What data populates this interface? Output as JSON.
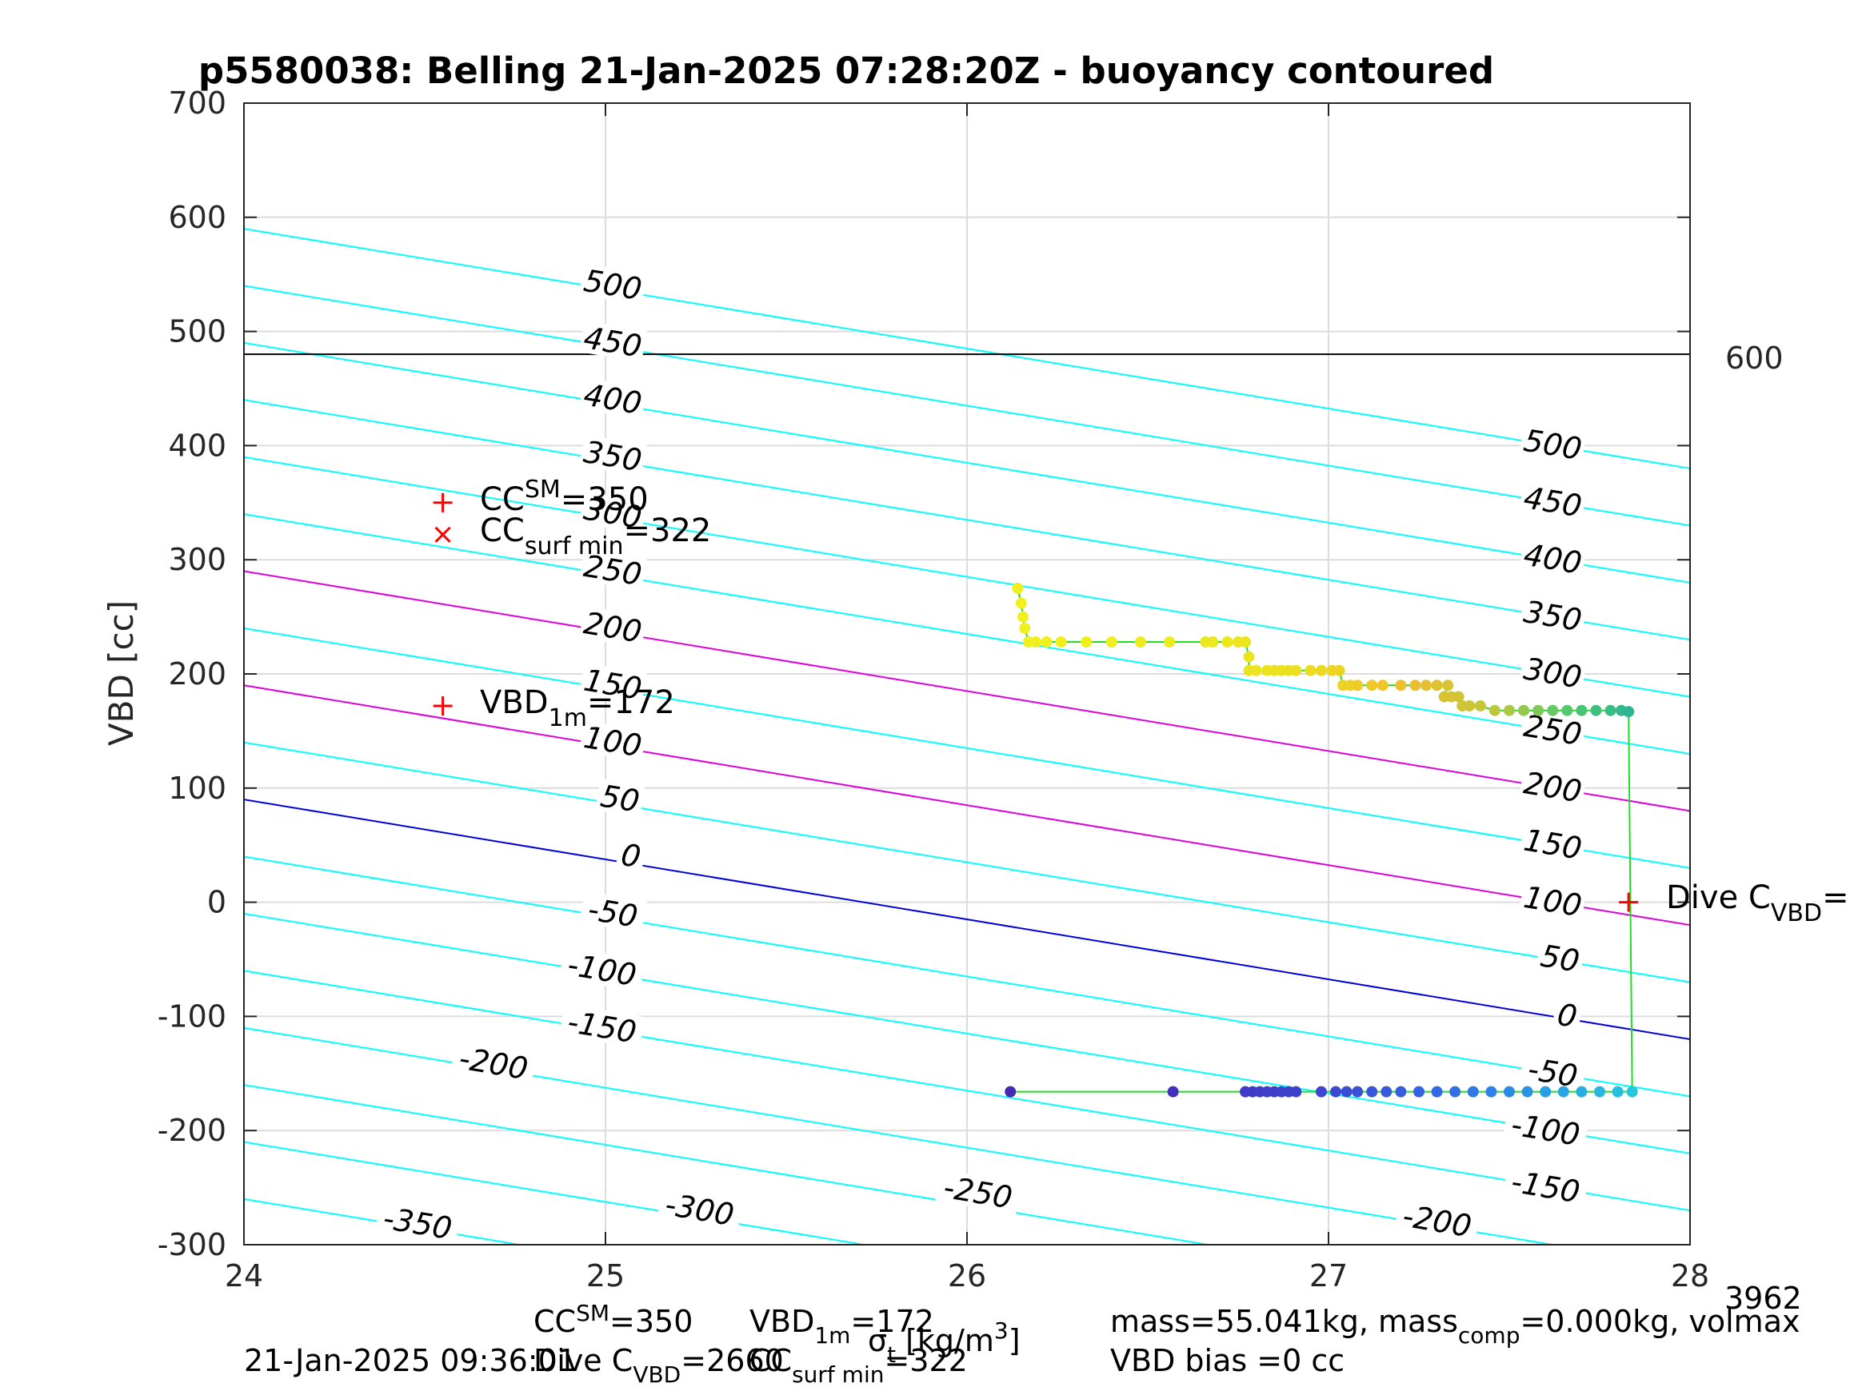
{
  "chart_data": {
    "type": "scatter",
    "title": "p5580038: Belling 21-Jan-2025 07:28:20Z - buoyancy contoured",
    "xlabel": "",
    "ylabel": "VBD [cc]",
    "xlim": [
      24,
      28
    ],
    "ylim": [
      -300,
      700
    ],
    "x_ticks": [
      24,
      25,
      26,
      27,
      28
    ],
    "y_ticks": [
      -300,
      -200,
      -100,
      0,
      100,
      200,
      300,
      400,
      500,
      600,
      700
    ],
    "x_tick_labels": [
      "24",
      "25",
      "26",
      "27",
      "28"
    ],
    "y_tick_labels": [
      "-300",
      "-200",
      "-100",
      "0",
      "100",
      "200",
      "300",
      "400",
      "500",
      "600",
      "700"
    ],
    "grid": true,
    "contours": {
      "slope_cc_per_unit": -52.5,
      "base_at_x24_for_level_0": 90,
      "levels": [
        -350,
        -300,
        -250,
        -200,
        -150,
        -100,
        -50,
        0,
        50,
        100,
        150,
        200,
        250,
        300,
        350,
        400,
        450,
        500
      ],
      "highlight": [
        {
          "level": 0,
          "color": "#0000dd"
        },
        {
          "level": 100,
          "color": "#dd00dd"
        },
        {
          "level": 200,
          "color": "#dd00dd"
        }
      ],
      "color": "#00ffff",
      "labels_left": [
        {
          "text": "500",
          "x": 25.02,
          "y": 540
        },
        {
          "text": "450",
          "x": 25.02,
          "y": 490
        },
        {
          "text": "400",
          "x": 25.02,
          "y": 440
        },
        {
          "text": "350",
          "x": 25.02,
          "y": 390
        },
        {
          "text": "300",
          "x": 25.02,
          "y": 340
        },
        {
          "text": "250",
          "x": 25.02,
          "y": 290
        },
        {
          "text": "200",
          "x": 25.02,
          "y": 240
        },
        {
          "text": "150",
          "x": 25.02,
          "y": 190
        },
        {
          "text": "100",
          "x": 25.02,
          "y": 140
        },
        {
          "text": "50",
          "x": 25.04,
          "y": 90
        },
        {
          "text": "0",
          "x": 25.07,
          "y": 40
        },
        {
          "text": "-50",
          "x": 25.02,
          "y": -10
        },
        {
          "text": "-100",
          "x": 24.99,
          "y": -60
        },
        {
          "text": "-150",
          "x": 24.99,
          "y": -110
        },
        {
          "text": "-200",
          "x": 24.69,
          "y": -142
        },
        {
          "text": "-250",
          "x": 26.03,
          "y": -255
        },
        {
          "text": "-300",
          "x": 25.26,
          "y": -270
        },
        {
          "text": "-350",
          "x": 24.48,
          "y": -282
        }
      ],
      "labels_right": [
        {
          "text": "500",
          "x": 27.62,
          "y": 400
        },
        {
          "text": "450",
          "x": 27.62,
          "y": 350
        },
        {
          "text": "400",
          "x": 27.62,
          "y": 300
        },
        {
          "text": "350",
          "x": 27.62,
          "y": 250
        },
        {
          "text": "300",
          "x": 27.62,
          "y": 200
        },
        {
          "text": "250",
          "x": 27.62,
          "y": 150
        },
        {
          "text": "200",
          "x": 27.62,
          "y": 100
        },
        {
          "text": "150",
          "x": 27.62,
          "y": 50
        },
        {
          "text": "100",
          "x": 27.62,
          "y": 0
        },
        {
          "text": "50",
          "x": 27.64,
          "y": -50
        },
        {
          "text": "0",
          "x": 27.66,
          "y": -100
        },
        {
          "text": "-50",
          "x": 27.62,
          "y": -150
        },
        {
          "text": "-100",
          "x": 27.6,
          "y": -200
        },
        {
          "text": "-150",
          "x": 27.6,
          "y": -250
        },
        {
          "text": "-200",
          "x": 27.3,
          "y": -280
        }
      ]
    },
    "reference_line": {
      "y": 480,
      "color": "#000000",
      "label": "600"
    },
    "series": [
      {
        "name": "",
        "color_scale": "yellow-to-orange-to-green",
        "points": [
          [
            26.14,
            275
          ],
          [
            26.15,
            262
          ],
          [
            26.155,
            250
          ],
          [
            26.16,
            240
          ],
          [
            26.17,
            228
          ],
          [
            26.19,
            228
          ],
          [
            26.22,
            228
          ],
          [
            26.26,
            228
          ],
          [
            26.33,
            228
          ],
          [
            26.4,
            228
          ],
          [
            26.48,
            228
          ],
          [
            26.56,
            228
          ],
          [
            26.66,
            228
          ],
          [
            26.68,
            228
          ],
          [
            26.72,
            228
          ],
          [
            26.75,
            228
          ],
          [
            26.77,
            228
          ],
          [
            26.78,
            215
          ],
          [
            26.78,
            203
          ],
          [
            26.8,
            203
          ],
          [
            26.83,
            203
          ],
          [
            26.85,
            203
          ],
          [
            26.87,
            203
          ],
          [
            26.89,
            203
          ],
          [
            26.91,
            203
          ],
          [
            26.95,
            203
          ],
          [
            26.98,
            203
          ],
          [
            27.01,
            203
          ],
          [
            27.03,
            203
          ],
          [
            27.04,
            190
          ],
          [
            27.06,
            190
          ],
          [
            27.08,
            190
          ],
          [
            27.12,
            190
          ],
          [
            27.15,
            190
          ],
          [
            27.2,
            190
          ],
          [
            27.24,
            190
          ],
          [
            27.27,
            190
          ],
          [
            27.3,
            190
          ],
          [
            27.33,
            190
          ],
          [
            27.32,
            180
          ],
          [
            27.34,
            180
          ],
          [
            27.36,
            180
          ],
          [
            27.37,
            172
          ],
          [
            27.39,
            172
          ],
          [
            27.42,
            172
          ],
          [
            27.46,
            168
          ],
          [
            27.5,
            168
          ],
          [
            27.54,
            168
          ],
          [
            27.58,
            168
          ],
          [
            27.62,
            168
          ],
          [
            27.66,
            168
          ],
          [
            27.7,
            168
          ],
          [
            27.74,
            168
          ],
          [
            27.78,
            168
          ],
          [
            27.81,
            168
          ],
          [
            27.83,
            167
          ]
        ]
      },
      {
        "name": "",
        "color_scale": "indigo-to-blue-to-cyan",
        "points": [
          [
            26.12,
            -166
          ],
          [
            26.57,
            -166
          ],
          [
            26.77,
            -166
          ],
          [
            26.79,
            -166
          ],
          [
            26.81,
            -166
          ],
          [
            26.83,
            -166
          ],
          [
            26.85,
            -166
          ],
          [
            26.87,
            -166
          ],
          [
            26.89,
            -166
          ],
          [
            26.91,
            -166
          ],
          [
            26.98,
            -166
          ],
          [
            27.02,
            -166
          ],
          [
            27.05,
            -166
          ],
          [
            27.08,
            -166
          ],
          [
            27.12,
            -166
          ],
          [
            27.16,
            -166
          ],
          [
            27.2,
            -166
          ],
          [
            27.25,
            -166
          ],
          [
            27.3,
            -166
          ],
          [
            27.35,
            -166
          ],
          [
            27.4,
            -166
          ],
          [
            27.45,
            -166
          ],
          [
            27.5,
            -166
          ],
          [
            27.55,
            -166
          ],
          [
            27.6,
            -166
          ],
          [
            27.65,
            -166
          ],
          [
            27.7,
            -166
          ],
          [
            27.75,
            -166
          ],
          [
            27.8,
            -166
          ],
          [
            27.84,
            -166
          ]
        ]
      }
    ],
    "path_line": {
      "color": "#22dd22",
      "points": [
        [
          26.12,
          -166
        ],
        [
          27.84,
          -166
        ],
        [
          27.84,
          -166
        ],
        [
          27.83,
          167
        ],
        [
          27.83,
          167
        ]
      ]
    },
    "markers": [
      {
        "shape": "plus",
        "x": 24.55,
        "y": 350,
        "color": "#ff0000"
      },
      {
        "shape": "x",
        "x": 24.55,
        "y": 322,
        "color": "#ff0000"
      },
      {
        "shape": "plus",
        "x": 24.55,
        "y": 172,
        "color": "#ff0000"
      },
      {
        "shape": "plus",
        "x": 27.83,
        "y": 0,
        "color": "#ff0000"
      }
    ],
    "annotations": {
      "cc_sm": {
        "main": "CC",
        "sub": "SM",
        "rest": "=350"
      },
      "cc_surf": {
        "main": "CC",
        "sub": "surf min",
        "rest": "=322"
      },
      "vbd_1m": {
        "main": "VBD",
        "sub": "1m",
        "rest": "=172"
      },
      "dive_c": {
        "main": "Dive C",
        "sub": "VBD",
        "rest": "="
      }
    },
    "footer": {
      "timestamp": "21-Jan-2025 09:36:01",
      "line1_left": "CC",
      "line1_left_sub": "SM",
      "line1_left_rest": "=350",
      "line1_mid": "VBD",
      "line1_mid_sub": "1m",
      "line1_mid_rest": "=172",
      "line2_left": "Dive C",
      "line2_left_sub": "VBD",
      "line2_left_rest": "=2660",
      "line2_mid": "CC",
      "line2_mid_sub": "surf min",
      "line2_mid_rest": "=322",
      "sigma_label": "σ",
      "sigma_sub": "t",
      "units": "[kg/m",
      "units_sup": "3",
      "units_end": "]",
      "mass_line": "mass=55.041kg, mass",
      "mass_sub": "comp",
      "mass_rest": "=0.000kg, volmax",
      "bias_line": "VBD bias =0 cc",
      "corner_value": "3962"
    }
  }
}
